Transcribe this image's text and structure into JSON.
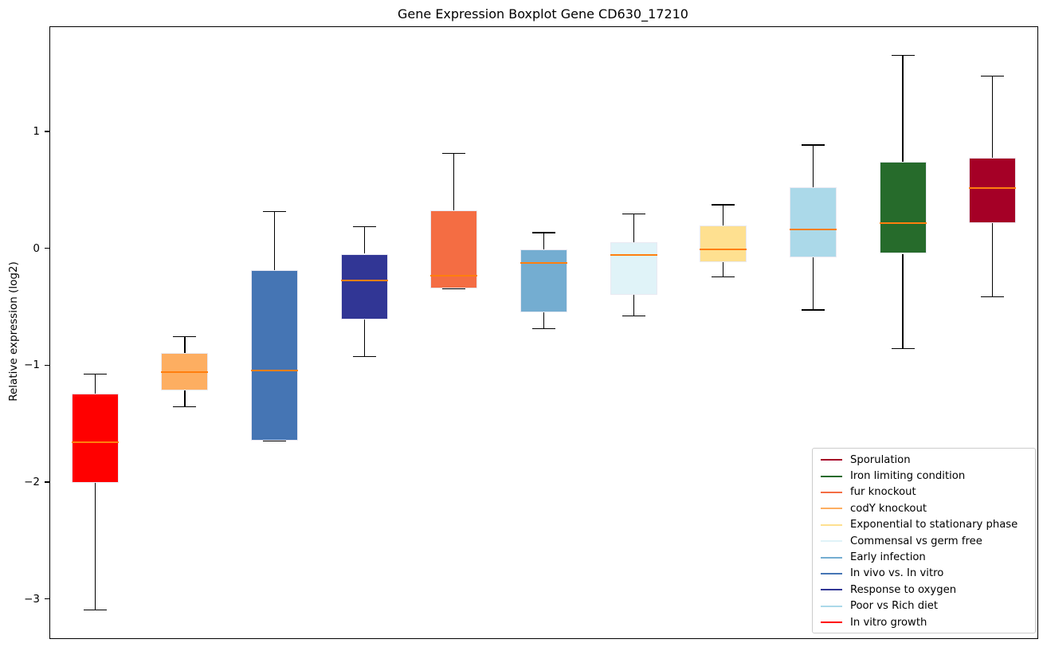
{
  "chart_data": {
    "type": "boxplot",
    "title": "Gene Expression Boxplot Gene CD630_17210",
    "ylabel": "Relative expression (log2)",
    "xlabel": "",
    "ylim": [
      -3.33,
      1.9
    ],
    "grid": false,
    "median_color": "#ff7f0e",
    "whisker_color": "#000000",
    "yticks": [
      {
        "value": 1,
        "label": "1"
      },
      {
        "value": 0,
        "label": "0"
      },
      {
        "value": -1,
        "label": "−1"
      },
      {
        "value": -2,
        "label": "−2"
      },
      {
        "value": -3,
        "label": "−3"
      }
    ],
    "series": [
      {
        "label": "In vitro growth",
        "color": "#ff0000",
        "whislo": -3.09,
        "q1": -2.0,
        "med": -1.65,
        "q3": -1.24,
        "whishi": -1.07
      },
      {
        "label": "codY knockout",
        "color": "#fdae61",
        "whislo": -1.35,
        "q1": -1.21,
        "med": -1.05,
        "q3": -0.89,
        "whishi": -0.75
      },
      {
        "label": "In vivo vs. In vitro",
        "color": "#4575b4",
        "whislo": -1.64,
        "q1": -1.64,
        "med": -1.04,
        "q3": -0.18,
        "whishi": 0.32
      },
      {
        "label": "Response to oxygen",
        "color": "#313695",
        "whislo": -0.92,
        "q1": -0.6,
        "med": -0.27,
        "q3": -0.04,
        "whishi": 0.19
      },
      {
        "label": "fur knockout",
        "color": "#f46d43",
        "whislo": -0.34,
        "q1": -0.34,
        "med": -0.23,
        "q3": 0.33,
        "whishi": 0.82
      },
      {
        "label": "Early infection",
        "color": "#74add1",
        "whislo": -0.68,
        "q1": -0.54,
        "med": -0.12,
        "q3": 0.0,
        "whishi": 0.14
      },
      {
        "label": "Commensal vs germ free",
        "color": "#e0f3f8",
        "whislo": -0.57,
        "q1": -0.39,
        "med": -0.05,
        "q3": 0.06,
        "whishi": 0.3
      },
      {
        "label": "Exponential to stationary phase",
        "color": "#fee090",
        "whislo": -0.24,
        "q1": -0.11,
        "med": 0.0,
        "q3": 0.2,
        "whishi": 0.38
      },
      {
        "label": "Poor vs Rich diet",
        "color": "#abd9e9",
        "whislo": -0.52,
        "q1": -0.07,
        "med": 0.17,
        "q3": 0.53,
        "whishi": 0.89
      },
      {
        "label": "Iron limiting condition",
        "color": "#266b2b",
        "whislo": -0.85,
        "q1": -0.04,
        "med": 0.22,
        "q3": 0.75,
        "whishi": 1.66
      },
      {
        "label": "Sporulation",
        "color": "#a50026",
        "whislo": -0.41,
        "q1": 0.22,
        "med": 0.52,
        "q3": 0.78,
        "whishi": 1.48
      }
    ],
    "legend": {
      "position": "lower right",
      "items": [
        {
          "label": "Sporulation",
          "color": "#a50026"
        },
        {
          "label": "Iron limiting condition",
          "color": "#266b2b"
        },
        {
          "label": "fur knockout",
          "color": "#f46d43"
        },
        {
          "label": "codY knockout",
          "color": "#fdae61"
        },
        {
          "label": "Exponential to stationary phase",
          "color": "#fee090"
        },
        {
          "label": "Commensal vs germ free",
          "color": "#e0f3f8"
        },
        {
          "label": "Early infection",
          "color": "#74add1"
        },
        {
          "label": "In vivo vs. In vitro",
          "color": "#4575b4"
        },
        {
          "label": "Response to oxygen",
          "color": "#313695"
        },
        {
          "label": "Poor vs Rich diet",
          "color": "#abd9e9"
        },
        {
          "label": "In vitro growth",
          "color": "#ff0000"
        }
      ]
    }
  }
}
